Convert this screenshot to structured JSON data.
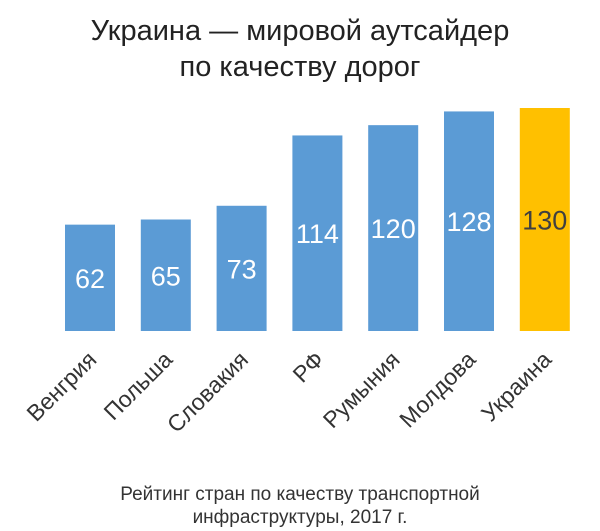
{
  "chart_data": {
    "type": "bar",
    "title": [
      "Украина — мировой аутсайдер",
      "по качеству дорог"
    ],
    "caption": [
      "Рейтинг стран по качеству транспортной",
      "инфраструктуры, 2017 г."
    ],
    "categories": [
      "Венгрия",
      "Польша",
      "Словакия",
      "РФ",
      "Румыния",
      "Молдова",
      "Украина"
    ],
    "values": [
      62,
      65,
      73,
      114,
      120,
      128,
      130
    ],
    "ylim": [
      0,
      130
    ],
    "highlight": "Украина",
    "colors": {
      "bar": "#5b9bd5",
      "highlight": "#ffc000",
      "label": "#ffffff",
      "highlight_label": "#404040"
    },
    "grid": false,
    "xlabel": "",
    "ylabel": ""
  }
}
